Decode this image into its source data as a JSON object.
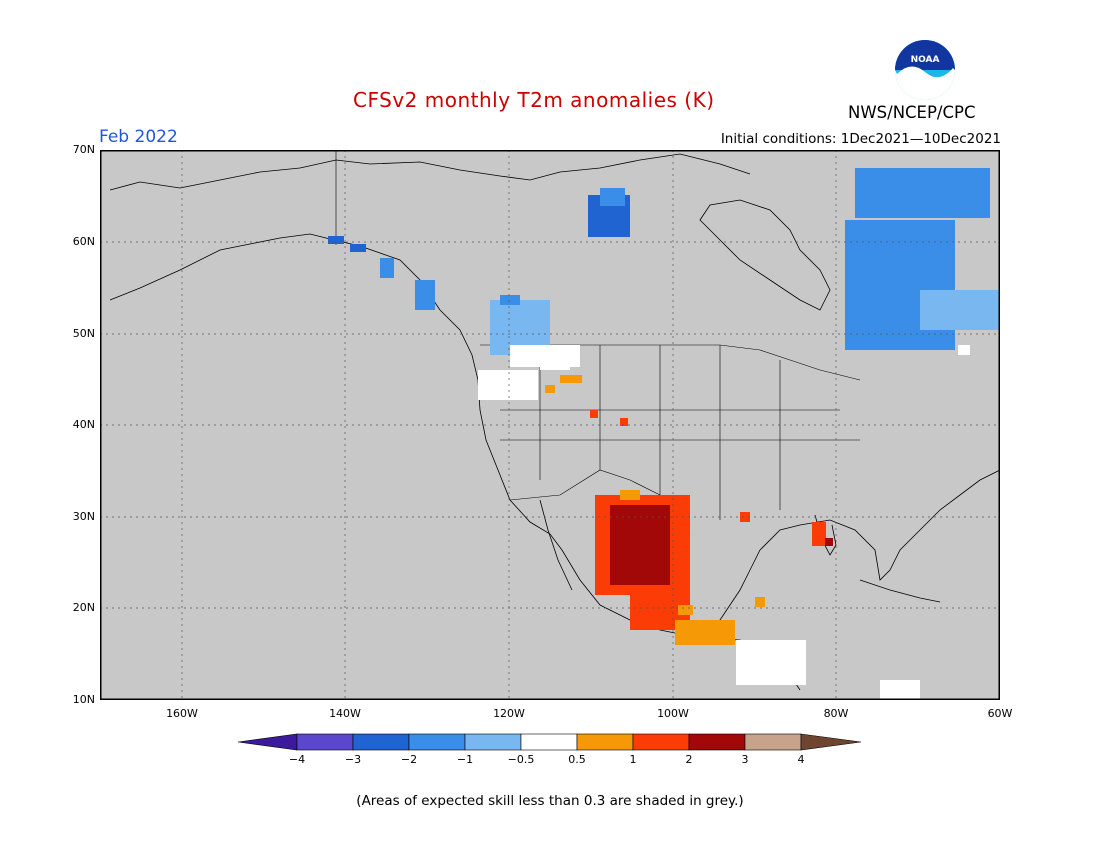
{
  "header": {
    "title": "CFSv2 monthly T2m anomalies (K)",
    "month": "Feb 2022",
    "initial_conditions": "Initial conditions: 1Dec2021—10Dec2021",
    "agency": "NWS/NCEP/CPC",
    "logo_text": "NOAA"
  },
  "axes": {
    "lat_labels": [
      "70N",
      "60N",
      "50N",
      "40N",
      "30N",
      "20N",
      "10N"
    ],
    "lon_labels": [
      "160W",
      "140W",
      "120W",
      "100W",
      "80W",
      "60W"
    ]
  },
  "colorbar": {
    "labels": [
      "−4",
      "−3",
      "−2",
      "−1",
      "−0.5",
      "0.5",
      "1",
      "2",
      "3",
      "4"
    ],
    "colors": [
      "#3c1a9c",
      "#5a47cc",
      "#1f64d0",
      "#3b8ee8",
      "#78b7f0",
      "#ffffff",
      "#f59a06",
      "#fb3c06",
      "#a30808",
      "#c8a38c",
      "#6e4530"
    ]
  },
  "footnote": "(Areas of expected skill less than 0.3 are shaded in grey.)",
  "colors": {
    "land_grey": "#c8c8c8",
    "title_red": "#cc0000",
    "month_blue": "#2255dd"
  }
}
